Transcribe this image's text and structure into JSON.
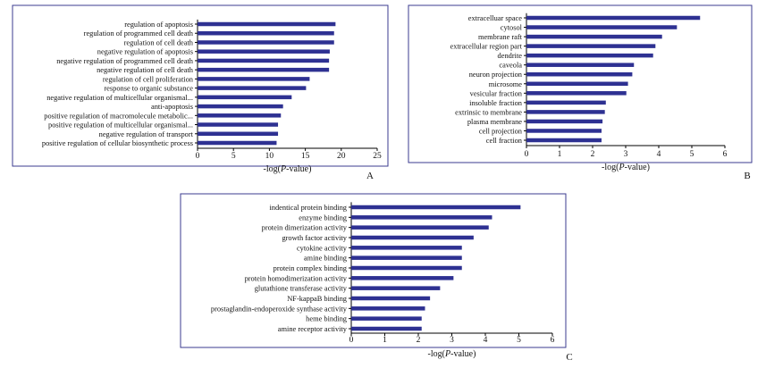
{
  "chart_data": [
    {
      "type": "bar",
      "orientation": "horizontal",
      "panel_label": "A",
      "categories": [
        "regulation of apoptosis",
        "regulation of programmed cell death",
        "regulation of cell death",
        "negative regulation of apoptosis",
        "negative regulation of programmed cell death",
        "negative regulation of cell death",
        "regulation of cell proliferation",
        "response to organic substance",
        "negative regulation of multicellular organismal...",
        "anti-apoptosis",
        "positive regulation of macromolecule metabolic...",
        "positive regulation of multicellular organismal...",
        "negative regulation of transport",
        "positive regulation of cellular biosynthetic process"
      ],
      "values": [
        19.2,
        19.0,
        19.0,
        18.4,
        18.3,
        18.3,
        15.6,
        15.1,
        13.1,
        11.9,
        11.6,
        11.2,
        11.2,
        11.0
      ],
      "xlim": [
        0,
        25
      ],
      "xticks": [
        "0",
        "5",
        "10",
        "15",
        "20",
        "25"
      ],
      "xlabel_prefix": "-log(",
      "xlabel_italic": "P",
      "xlabel_suffix": "-value)"
    },
    {
      "type": "bar",
      "orientation": "horizontal",
      "panel_label": "B",
      "categories": [
        "extracelluar space",
        "cytosol",
        "membrane raft",
        "extracellular region part",
        "dendrite",
        "caveola",
        "neuron projection",
        "microsome",
        "vesicular fraction",
        "insoluble fraction",
        "extrinsic to membrane",
        "plasma membrane",
        "cell projection",
        "cell fraction"
      ],
      "values": [
        5.25,
        4.55,
        4.1,
        3.9,
        3.83,
        3.25,
        3.2,
        3.07,
        3.02,
        2.4,
        2.37,
        2.3,
        2.27,
        2.27
      ],
      "xlim": [
        0,
        6
      ],
      "xticks": [
        "0",
        "1",
        "2",
        "3",
        "4",
        "5",
        "6"
      ],
      "xlabel_prefix": "-log(",
      "xlabel_italic": "P",
      "xlabel_suffix": "-value)"
    },
    {
      "type": "bar",
      "orientation": "horizontal",
      "panel_label": "C",
      "categories": [
        "indentical protein binding",
        "enzyme binding",
        "protein dimerization activity",
        "growth factor activity",
        "cytokine activity",
        "amine binding",
        "protein complex binding",
        "protein homodimerization activity",
        "glutathione transferase activity",
        "NF-kappaB binding",
        "prostaglandin-endoperoxide synthase activity",
        "heme binding",
        "amine receptor activity"
      ],
      "values": [
        5.05,
        4.2,
        4.1,
        3.65,
        3.3,
        3.3,
        3.3,
        3.05,
        2.65,
        2.35,
        2.2,
        2.1,
        2.1
      ],
      "xlim": [
        0,
        6
      ],
      "xticks": [
        "0",
        "1",
        "2",
        "3",
        "4",
        "5",
        "6"
      ],
      "xlabel_prefix": "-log(",
      "xlabel_italic": "P",
      "xlabel_suffix": "-value)"
    }
  ]
}
